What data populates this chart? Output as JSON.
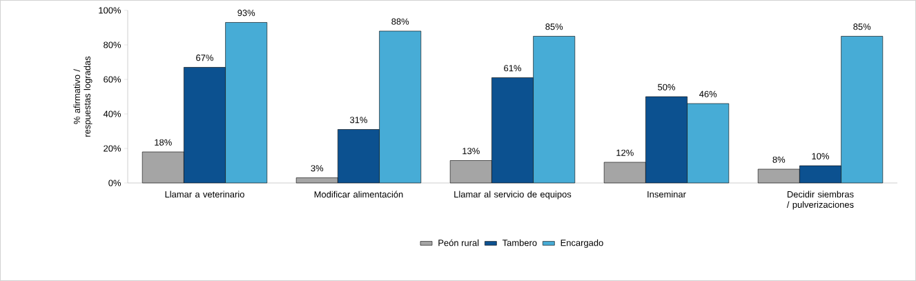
{
  "chart_data": {
    "type": "bar",
    "ylabel": "% afirmativo / respuestas logradas",
    "categories": [
      "Llamar a veterinario",
      "Modificar alimentación",
      "Llamar al servicio de equipos",
      "Inseminar",
      "Decidir siembras / pulverizaciones"
    ],
    "series": [
      {
        "name": "Peón rural",
        "color": "#a5a5a5",
        "values": [
          18,
          3,
          13,
          12,
          8
        ],
        "value_labels": [
          "18%",
          "3%",
          "13%",
          "12%",
          "8%"
        ]
      },
      {
        "name": "Tambero",
        "color": "#0c5190",
        "values": [
          67,
          31,
          61,
          50,
          10
        ],
        "value_labels": [
          "67%",
          "31%",
          "61%",
          "50%",
          "10%"
        ]
      },
      {
        "name": "Encargado",
        "color": "#47acd6",
        "values": [
          93,
          88,
          85,
          46,
          85
        ],
        "value_labels": [
          "93%",
          "88%",
          "85%",
          "46%",
          "85%"
        ]
      }
    ],
    "ylim": [
      0,
      100
    ],
    "yticks": [
      {
        "value": 0,
        "label": "0%"
      },
      {
        "value": 20,
        "label": "20%"
      },
      {
        "value": 40,
        "label": "40%"
      },
      {
        "value": 60,
        "label": "60%"
      },
      {
        "value": 80,
        "label": "80%"
      },
      {
        "value": 100,
        "label": "100%"
      }
    ],
    "grid": false,
    "legend": "bottom"
  }
}
